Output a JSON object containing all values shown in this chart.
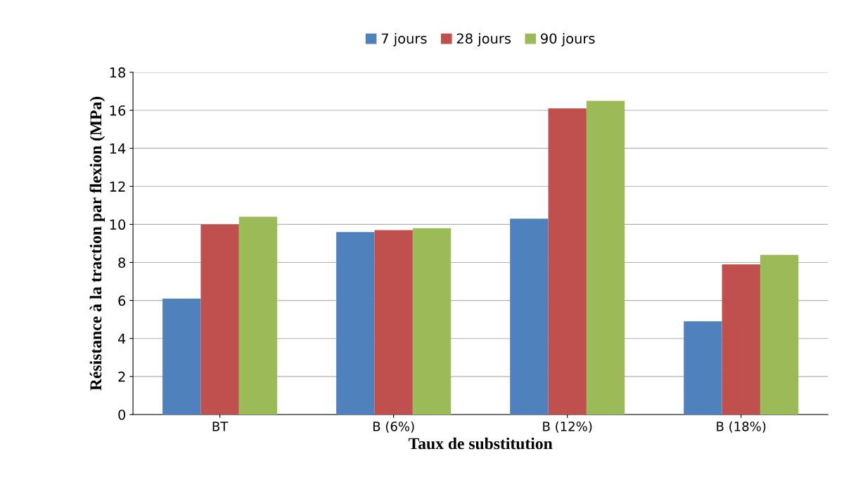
{
  "chart_data": {
    "type": "bar",
    "xlabel": "Taux de substitution",
    "ylabel": "Résistance à la traction par flexion (MPa)",
    "categories": [
      "BT",
      "B (6%)",
      "B (12%)",
      "B (18%)"
    ],
    "series": [
      {
        "name": "7 jours",
        "color": "#4f81bd",
        "values": [
          6.1,
          9.6,
          10.3,
          4.9
        ]
      },
      {
        "name": "28 jours",
        "color": "#c0504d",
        "values": [
          10.0,
          9.7,
          16.1,
          7.9
        ]
      },
      {
        "name": "90 jours",
        "color": "#9bbb59",
        "values": [
          10.4,
          9.8,
          16.5,
          8.4
        ]
      }
    ],
    "ylim": [
      0,
      18
    ],
    "yticks": [
      0,
      2,
      4,
      6,
      8,
      10,
      12,
      14,
      16,
      18
    ],
    "grid": "y",
    "legend": "top"
  }
}
